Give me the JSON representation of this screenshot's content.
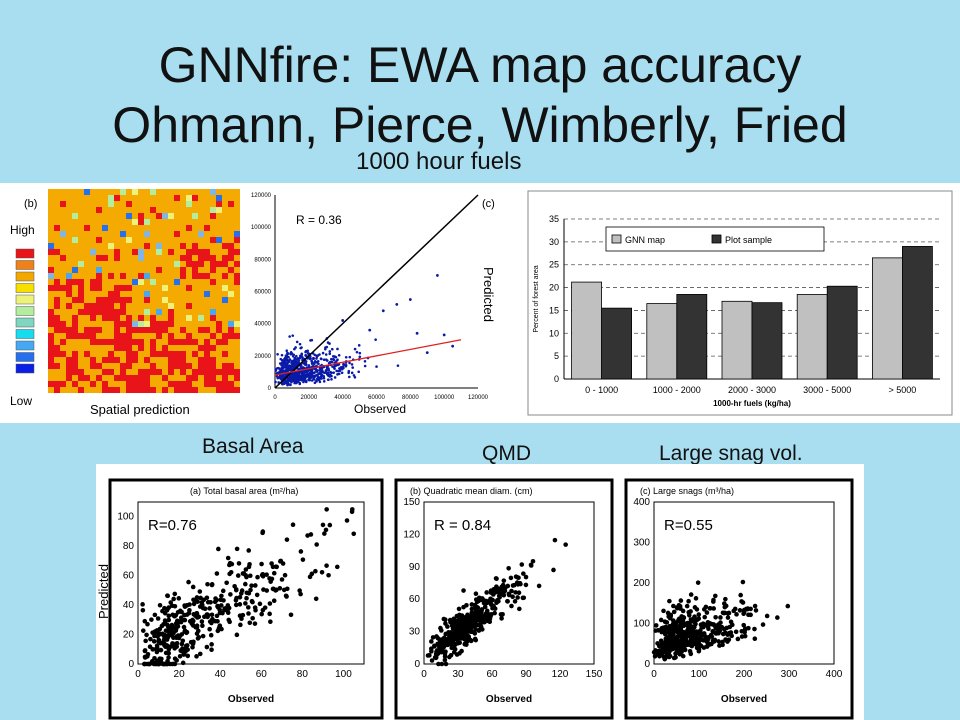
{
  "slide": {
    "title_line1": "GNNfire: EWA map accuracy",
    "title_line2": "Ohmann, Pierce, Wimberly, Fried",
    "label_fuels": "1000 hour fuels",
    "label_basal": "Basal Area",
    "label_qmd": "QMD",
    "label_snag": "Large snag vol."
  },
  "map_panel": {
    "tag": "(b)",
    "legend_high": "High",
    "legend_low": "Low",
    "caption": "Spatial prediction",
    "legend_colors": [
      "#e8141a",
      "#f08018",
      "#f3a800",
      "#f7e000",
      "#ecf27a",
      "#b2ee9e",
      "#7fd7c2",
      "#16dcf0",
      "#44a8f2",
      "#2470f0",
      "#0a1ee6"
    ]
  },
  "scatter_fuels": {
    "tag": "(c)",
    "r_label": "R = 0.36",
    "ylabel": "Predicted",
    "xlabel": "Observed",
    "x_ticks": [
      "0",
      "20000",
      "40000",
      "60000",
      "80000",
      "100000",
      "120000"
    ],
    "y_ticks": [
      "0",
      "20000",
      "40000",
      "60000",
      "80000",
      "100000",
      "120000"
    ]
  },
  "basal_panel": {
    "title": "(a) Total basal area (m²/ha)",
    "r_label": "R=0.76",
    "ylabel": "Predicted",
    "xlabel": "Observed",
    "x_ticks": [
      "0",
      "20",
      "40",
      "60",
      "80",
      "100"
    ],
    "y_ticks": [
      "0",
      "20",
      "40",
      "60",
      "80",
      "100"
    ]
  },
  "qmd_panel": {
    "title": "(b) Quadratic mean diam. (cm)",
    "r_label": "R = 0.84",
    "xlabel": "Observed",
    "x_ticks": [
      "0",
      "30",
      "60",
      "90",
      "120",
      "150"
    ],
    "y_ticks": [
      "0",
      "30",
      "60",
      "90",
      "120",
      "150"
    ]
  },
  "snag_panel": {
    "title": "(c) Large snags (m³/ha)",
    "r_label": "R=0.55",
    "xlabel": "Observed",
    "x_ticks": [
      "0",
      "100",
      "200",
      "300",
      "400"
    ],
    "y_ticks": [
      "0",
      "100",
      "200",
      "300",
      "400"
    ]
  },
  "chart_data": [
    {
      "type": "bar",
      "title": "",
      "xlabel": "1000-hr fuels (kg/ha)",
      "ylabel": "Percent of forest area",
      "ylim": [
        0,
        35
      ],
      "y_ticks": [
        "0",
        "5",
        "10",
        "15",
        "20",
        "25",
        "30",
        "35"
      ],
      "categories": [
        "0 - 1000",
        "1000 - 2000",
        "2000 - 3000",
        "3000 - 5000",
        "> 5000"
      ],
      "series": [
        {
          "name": "GNN map",
          "color": "#c0c0c0",
          "values": [
            21.2,
            16.5,
            17.0,
            18.5,
            26.5
          ]
        },
        {
          "name": "Plot sample",
          "color": "#333333",
          "values": [
            15.5,
            18.5,
            16.7,
            20.3,
            29.0
          ]
        }
      ],
      "legend": "top",
      "grid": "dashed horizontal"
    },
    {
      "type": "scatter",
      "title": "",
      "xlabel": "Observed",
      "ylabel": "Predicted",
      "xlim": [
        0,
        120000
      ],
      "ylim": [
        0,
        120000
      ],
      "annotation": "R = 0.36",
      "lines": [
        {
          "name": "",
          "x": [
            0,
            120000
          ],
          "y": [
            0,
            120000
          ],
          "color": "#000000"
        },
        {
          "name": "",
          "x": [
            0,
            110000
          ],
          "y": [
            8000,
            30000
          ],
          "color": "#e02020"
        }
      ],
      "points_note": "dense cloud near origin"
    },
    {
      "type": "scatter",
      "title": "(a) Total basal area (m²/ha)",
      "xlabel": "Observed",
      "ylabel": "Predicted",
      "xlim": [
        0,
        110
      ],
      "ylim": [
        0,
        110
      ],
      "annotation": "R=0.76"
    },
    {
      "type": "scatter",
      "title": "(b) Quadratic mean diam. (cm)",
      "xlabel": "Observed",
      "ylabel": "",
      "xlim": [
        0,
        150
      ],
      "ylim": [
        0,
        150
      ],
      "annotation": "R = 0.84"
    },
    {
      "type": "scatter",
      "title": "(c) Large snags (m³/ha)",
      "xlabel": "Observed",
      "ylabel": "",
      "xlim": [
        0,
        400
      ],
      "ylim": [
        0,
        400
      ],
      "annotation": "R=0.55"
    }
  ]
}
